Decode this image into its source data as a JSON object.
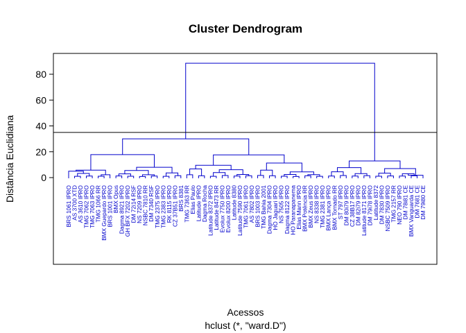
{
  "chart_data": {
    "type": "dendrogram",
    "title": "Cluster Dendrogram",
    "xlabel": "Acessos",
    "sublabel": "hclust (*, \"ward.D\")",
    "ylabel": "Distância Euclidiana",
    "ylim": [
      -70,
      95
    ],
    "yticks": [
      0,
      20,
      40,
      60,
      80
    ],
    "cut_height": 35,
    "colors": {
      "branch": "#0000cc",
      "cutline": "#000000",
      "axis": "#000000"
    },
    "leaves": [
      "BRS 1061 IPRO",
      "AS 3700 XTD",
      "AS 3610 IPRO",
      "TMG 7062 IPRO",
      "TMG 7063 IPRO",
      "TMG 1066 RR",
      "BMX Guepardo IPRO",
      "BRS 1001 IPRO",
      "BMX Opus",
      "Dagma 8921 IPRO",
      "GH BFX 7202 IPRO",
      "DM 72i14 RSF",
      "NS 7209 IPRO",
      "NSBC 7810 RR",
      "DM 7340 RSF",
      "TMG 2375 IPRO",
      "TMG 2383 IPRO",
      "RK 8115 IPRO",
      "CZ 37B51 IPRO",
      "BRS 8381",
      "TMG 7363 RR",
      "Elias Paulo",
      "Latitude IPRO",
      "Dagma Rocha",
      "Latitude 8372 IPRO",
      "Latitude 8473 RR",
      "Evolux 7750 IPRO",
      "Evolux 8200 IPRO",
      "Latitude 8380",
      "Latitude 7590 IPRO",
      "TMG 7061 IPRO",
      "AS 7802 IPRO",
      "BRS 1003 IPRO",
      "TMG Bahia 2001",
      "Dagma 7304 IPRO",
      "HO Jaguari IPRO",
      "NS 7505 IPRO",
      "Dagma 8122 IPRO",
      "HO Paranapanema",
      "Elias Mann IPRO",
      "BMX Potência RR",
      "BMX Zeus IPRO",
      "NS 8338 IPRO",
      "TMG 2381 IPRO",
      "BMX Lança IPRO",
      "BMX Tornado RR",
      "ST 797 IPRO",
      "DM 80i79 IPRO",
      "CZ 38B17 IPRO",
      "DM 82i79 IPRO",
      "Latitude 8171 IPRO",
      "DM 79i78 IPRO",
      "Latitude 8372",
      "DM 7830 IPRO",
      "NSBC 7509 IPRO",
      "TMG 2157 RR",
      "NEO 790 IPRO",
      "DM 78i81 CE",
      "BMX Vanguarda CE",
      "DM 7681 CE",
      "DM 79i80 CE"
    ],
    "merges": [
      [
        -2,
        -3,
        1.0
      ],
      [
        -4,
        -5,
        1.2
      ],
      [
        1,
        2,
        3.2
      ],
      [
        -1,
        3,
        5.0
      ],
      [
        -6,
        -7,
        1.1
      ],
      [
        -8,
        5,
        2.2
      ],
      [
        4,
        6,
        5.8
      ],
      [
        -9,
        -10,
        1.3
      ],
      [
        -11,
        -12,
        1.1
      ],
      [
        8,
        9,
        2.9
      ],
      [
        -13,
        -14,
        0.9
      ],
      [
        -15,
        -16,
        1.2
      ],
      [
        11,
        12,
        2.2
      ],
      [
        10,
        13,
        5.5
      ],
      [
        -17,
        -18,
        1.0
      ],
      [
        -19,
        -20,
        1.5
      ],
      [
        15,
        16,
        3.6
      ],
      [
        14,
        17,
        8.0
      ],
      [
        7,
        18,
        17.8
      ],
      [
        -21,
        -22,
        2.2
      ],
      [
        -23,
        -24,
        1.4
      ],
      [
        20,
        21,
        6.7
      ],
      [
        -25,
        -26,
        1.0
      ],
      [
        -27,
        -28,
        1.6
      ],
      [
        23,
        24,
        3.9
      ],
      [
        -29,
        -30,
        1.2
      ],
      [
        -31,
        -32,
        1.4
      ],
      [
        26,
        27,
        2.4
      ],
      [
        25,
        28,
        6.1
      ],
      [
        22,
        29,
        9.5
      ],
      [
        -33,
        -34,
        1.7
      ],
      [
        -35,
        -36,
        1.4
      ],
      [
        31,
        32,
        5.8
      ],
      [
        -37,
        -38,
        1.1
      ],
      [
        -39,
        -40,
        0.9
      ],
      [
        34,
        35,
        2.4
      ],
      [
        -41,
        -42,
        1.4
      ],
      [
        -43,
        -44,
        1.0
      ],
      [
        37,
        38,
        2.3
      ],
      [
        36,
        39,
        4.4
      ],
      [
        33,
        40,
        11.3
      ],
      [
        30,
        41,
        17.6
      ],
      [
        42,
        19,
        30.0
      ],
      [
        -45,
        -46,
        1.2
      ],
      [
        -47,
        -48,
        1.6
      ],
      [
        44,
        45,
        4.5
      ],
      [
        -49,
        -50,
        1.2
      ],
      [
        -51,
        -52,
        1.5
      ],
      [
        47,
        48,
        3.1
      ],
      [
        46,
        49,
        7.7
      ],
      [
        -53,
        -54,
        1.1
      ],
      [
        -55,
        -56,
        1.3
      ],
      [
        51,
        52,
        3.4
      ],
      [
        -57,
        -58,
        1.2
      ],
      [
        -59,
        -60,
        1.4
      ],
      [
        54,
        55,
        3.0
      ],
      [
        -61,
        56,
        1.8
      ],
      [
        53,
        57,
        7.0
      ],
      [
        50,
        58,
        12.9
      ],
      [
        43,
        59,
        88.5
      ]
    ]
  }
}
